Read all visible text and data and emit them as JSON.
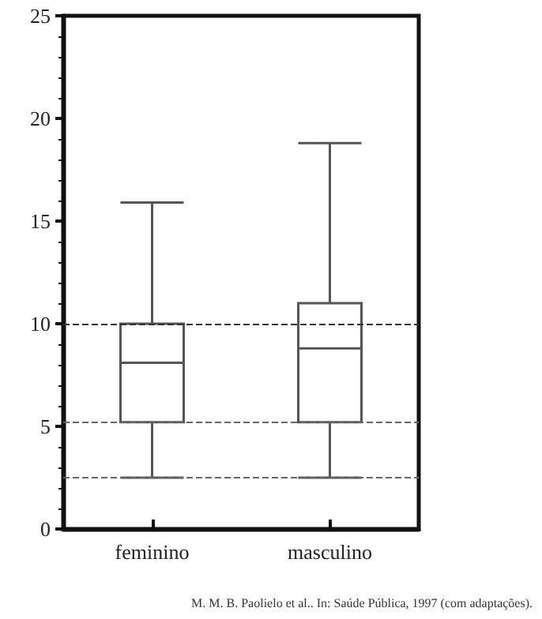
{
  "chart_data": {
    "type": "box",
    "categories": [
      "feminino",
      "masculino"
    ],
    "boxes": [
      {
        "low": 2.5,
        "q1": 5.2,
        "median": 8.1,
        "q3": 10,
        "high": 15.9
      },
      {
        "low": 2.5,
        "q1": 5.2,
        "median": 8.8,
        "q3": 11,
        "high": 18.8
      }
    ],
    "color": "#555555",
    "ylim": [
      0,
      25
    ],
    "yticks": [
      0,
      5,
      10,
      15,
      20,
      25
    ],
    "grid": false,
    "ref_lines": [
      {
        "axis": "y",
        "value": 10,
        "color": "#333333",
        "line_style": "dashed"
      },
      {
        "axis": "y",
        "value": 5.2,
        "color": "#666666",
        "line_style": "dashed"
      },
      {
        "axis": "y",
        "value": 2.5,
        "color": "#666666",
        "line_style": "dashed"
      }
    ],
    "annotations": [
      "M. M. B. Paolielo et al.. In: Saúde Pública, 1997 (com adaptações)."
    ]
  }
}
